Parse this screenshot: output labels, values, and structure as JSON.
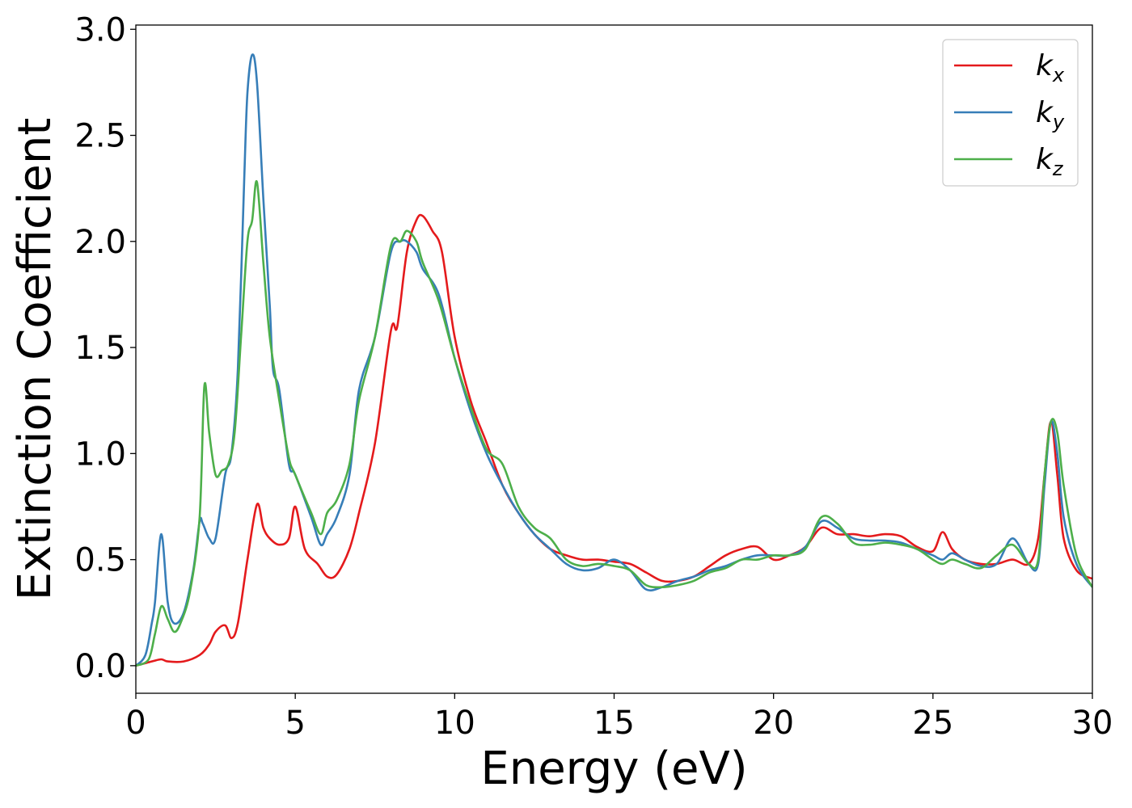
{
  "chart_data": {
    "type": "line",
    "xlabel": "Energy (eV)",
    "ylabel": "Extinction Coefficient",
    "xlim": [
      0,
      30
    ],
    "ylim": [
      -0.13,
      3.02
    ],
    "xticks": [
      0,
      5,
      10,
      15,
      20,
      25,
      30
    ],
    "xtick_labels": [
      "0",
      "5",
      "10",
      "15",
      "20",
      "25",
      "30"
    ],
    "yticks": [
      0.0,
      0.5,
      1.0,
      1.5,
      2.0,
      2.5,
      3.0
    ],
    "ytick_labels": [
      "0.0",
      "0.5",
      "1.0",
      "1.5",
      "2.0",
      "2.5",
      "3.0"
    ],
    "grid": false,
    "legend_position": "top-right",
    "series": [
      {
        "name": "k",
        "sub": "x",
        "color": "#e41a1c",
        "x": [
          0,
          0.5,
          0.8,
          1.0,
          1.5,
          2.0,
          2.3,
          2.5,
          2.8,
          3.0,
          3.2,
          3.5,
          3.8,
          4.0,
          4.2,
          4.5,
          4.8,
          5.0,
          5.3,
          5.7,
          6.0,
          6.3,
          6.7,
          7.0,
          7.5,
          8.0,
          8.2,
          8.5,
          8.8,
          9.0,
          9.3,
          9.6,
          10.0,
          10.5,
          11.0,
          11.5,
          12.0,
          12.5,
          13.0,
          13.5,
          14.0,
          14.5,
          15.0,
          15.5,
          16.0,
          16.5,
          17.0,
          17.5,
          18.0,
          18.5,
          19.0,
          19.5,
          20.0,
          20.5,
          21.0,
          21.5,
          22.0,
          22.5,
          23.0,
          23.5,
          24.0,
          24.5,
          25.0,
          25.3,
          25.6,
          26.0,
          26.5,
          27.0,
          27.5,
          28.0,
          28.3,
          28.5,
          28.7,
          28.9,
          29.1,
          29.5,
          30.0
        ],
        "y": [
          0.0,
          0.02,
          0.03,
          0.02,
          0.02,
          0.05,
          0.1,
          0.16,
          0.19,
          0.13,
          0.2,
          0.5,
          0.76,
          0.65,
          0.6,
          0.57,
          0.6,
          0.75,
          0.55,
          0.48,
          0.42,
          0.43,
          0.55,
          0.72,
          1.05,
          1.58,
          1.6,
          1.95,
          2.1,
          2.12,
          2.05,
          1.95,
          1.55,
          1.25,
          1.05,
          0.85,
          0.72,
          0.62,
          0.55,
          0.52,
          0.5,
          0.5,
          0.49,
          0.48,
          0.44,
          0.4,
          0.4,
          0.42,
          0.47,
          0.52,
          0.55,
          0.56,
          0.5,
          0.52,
          0.56,
          0.65,
          0.62,
          0.62,
          0.61,
          0.62,
          0.61,
          0.56,
          0.54,
          0.63,
          0.55,
          0.5,
          0.48,
          0.48,
          0.5,
          0.48,
          0.6,
          0.9,
          1.15,
          0.9,
          0.6,
          0.45,
          0.41
        ]
      },
      {
        "name": "k",
        "sub": "y",
        "color": "#377eb8",
        "x": [
          0,
          0.3,
          0.5,
          0.6,
          0.8,
          1.0,
          1.2,
          1.5,
          1.8,
          2.0,
          2.1,
          2.3,
          2.5,
          2.8,
          3.0,
          3.2,
          3.4,
          3.5,
          3.65,
          3.8,
          4.0,
          4.2,
          4.3,
          4.5,
          4.8,
          5.0,
          5.5,
          5.8,
          6.0,
          6.3,
          6.7,
          7.0,
          7.5,
          8.0,
          8.3,
          8.5,
          8.8,
          9.0,
          9.5,
          10.0,
          10.5,
          11.0,
          11.5,
          12.0,
          12.5,
          13.0,
          13.5,
          14.0,
          14.5,
          15.0,
          15.5,
          16.0,
          16.5,
          17.0,
          17.5,
          18.0,
          18.5,
          19.0,
          19.5,
          20.0,
          20.5,
          21.0,
          21.5,
          22.0,
          22.5,
          23.0,
          23.5,
          24.0,
          24.5,
          25.0,
          25.3,
          25.6,
          26.0,
          26.5,
          27.0,
          27.5,
          28.0,
          28.3,
          28.5,
          28.7,
          28.9,
          29.1,
          29.5,
          30.0
        ],
        "y": [
          0.0,
          0.05,
          0.2,
          0.3,
          0.62,
          0.3,
          0.2,
          0.25,
          0.45,
          0.68,
          0.67,
          0.6,
          0.6,
          0.9,
          1.0,
          1.4,
          2.3,
          2.7,
          2.88,
          2.75,
          2.2,
          1.7,
          1.4,
          1.3,
          0.95,
          0.9,
          0.7,
          0.57,
          0.62,
          0.7,
          0.9,
          1.3,
          1.55,
          1.95,
          2.0,
          2.0,
          1.95,
          1.87,
          1.75,
          1.45,
          1.2,
          1.0,
          0.85,
          0.72,
          0.62,
          0.55,
          0.48,
          0.45,
          0.46,
          0.5,
          0.45,
          0.36,
          0.37,
          0.4,
          0.42,
          0.45,
          0.47,
          0.5,
          0.52,
          0.52,
          0.52,
          0.56,
          0.68,
          0.65,
          0.6,
          0.59,
          0.59,
          0.58,
          0.55,
          0.52,
          0.5,
          0.53,
          0.5,
          0.47,
          0.48,
          0.6,
          0.48,
          0.48,
          0.85,
          1.15,
          1.0,
          0.7,
          0.48,
          0.37
        ]
      },
      {
        "name": "k",
        "sub": "z",
        "color": "#4daf4a",
        "x": [
          0,
          0.4,
          0.6,
          0.8,
          1.0,
          1.2,
          1.4,
          1.7,
          2.0,
          2.15,
          2.3,
          2.5,
          2.7,
          2.9,
          3.1,
          3.3,
          3.5,
          3.65,
          3.8,
          4.0,
          4.2,
          4.5,
          4.8,
          5.0,
          5.5,
          5.8,
          6.0,
          6.3,
          6.7,
          7.0,
          7.5,
          8.0,
          8.3,
          8.5,
          8.8,
          9.0,
          9.5,
          10.0,
          10.5,
          11.0,
          11.5,
          12.0,
          12.5,
          13.0,
          13.5,
          14.0,
          14.5,
          15.0,
          15.5,
          16.0,
          16.5,
          17.0,
          17.5,
          18.0,
          18.5,
          19.0,
          19.5,
          20.0,
          20.5,
          21.0,
          21.5,
          22.0,
          22.5,
          23.0,
          23.5,
          24.0,
          24.5,
          25.0,
          25.3,
          25.6,
          26.0,
          26.5,
          27.0,
          27.5,
          28.0,
          28.3,
          28.5,
          28.7,
          28.9,
          29.1,
          29.5,
          30.0
        ],
        "y": [
          0.0,
          0.03,
          0.15,
          0.28,
          0.22,
          0.16,
          0.2,
          0.35,
          0.7,
          1.32,
          1.1,
          0.9,
          0.92,
          0.95,
          1.1,
          1.55,
          2.0,
          2.1,
          2.28,
          1.9,
          1.55,
          1.25,
          0.98,
          0.9,
          0.72,
          0.62,
          0.72,
          0.78,
          0.95,
          1.25,
          1.55,
          1.98,
          2.0,
          2.05,
          2.0,
          1.9,
          1.72,
          1.45,
          1.22,
          1.02,
          0.95,
          0.75,
          0.65,
          0.6,
          0.5,
          0.47,
          0.48,
          0.47,
          0.45,
          0.38,
          0.37,
          0.38,
          0.4,
          0.44,
          0.46,
          0.5,
          0.5,
          0.52,
          0.52,
          0.55,
          0.7,
          0.67,
          0.58,
          0.57,
          0.58,
          0.57,
          0.55,
          0.5,
          0.48,
          0.5,
          0.48,
          0.46,
          0.52,
          0.57,
          0.48,
          0.5,
          0.9,
          1.15,
          1.1,
          0.85,
          0.52,
          0.37
        ]
      }
    ]
  }
}
